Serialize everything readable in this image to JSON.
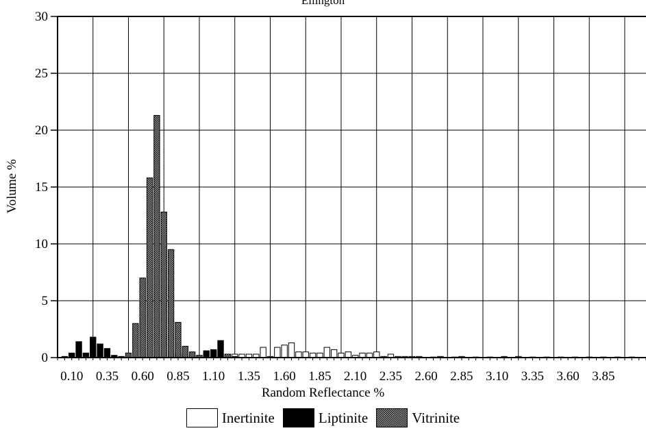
{
  "chart_data": {
    "type": "bar",
    "title": "Ellington",
    "xlabel": "Random Reflectance %",
    "ylabel": "Volume %",
    "ylim": [
      0,
      30
    ],
    "yticks": [
      0,
      5,
      10,
      15,
      20,
      25,
      30
    ],
    "xlim": [
      0.0,
      4.15
    ],
    "xticks": [
      "0.10",
      "0.35",
      "0.60",
      "0.85",
      "1.10",
      "1.35",
      "1.60",
      "1.85",
      "2.10",
      "2.35",
      "2.60",
      "2.85",
      "3.10",
      "3.35",
      "3.60",
      "3.85"
    ],
    "grid": true,
    "legend_position": "bottom",
    "bin_width": 0.05,
    "series": [
      {
        "name": "Inertinite",
        "color": "#ffffff",
        "points": [
          [
            0.85,
            0.4
          ],
          [
            0.9,
            0.3
          ],
          [
            0.95,
            0.2
          ],
          [
            1.05,
            0.4
          ],
          [
            1.1,
            0.5
          ],
          [
            1.2,
            0.3
          ],
          [
            1.25,
            0.3
          ],
          [
            1.3,
            0.3
          ],
          [
            1.35,
            0.3
          ],
          [
            1.4,
            0.3
          ],
          [
            1.45,
            0.9
          ],
          [
            1.5,
            0.1
          ],
          [
            1.55,
            0.9
          ],
          [
            1.6,
            1.1
          ],
          [
            1.65,
            1.3
          ],
          [
            1.7,
            0.5
          ],
          [
            1.75,
            0.5
          ],
          [
            1.8,
            0.4
          ],
          [
            1.85,
            0.4
          ],
          [
            1.9,
            0.9
          ],
          [
            1.95,
            0.7
          ],
          [
            2.0,
            0.4
          ],
          [
            2.05,
            0.5
          ],
          [
            2.1,
            0.2
          ],
          [
            2.15,
            0.4
          ],
          [
            2.2,
            0.4
          ],
          [
            2.25,
            0.5
          ],
          [
            2.3,
            0.1
          ],
          [
            2.35,
            0.3
          ],
          [
            2.4,
            0.1
          ],
          [
            2.45,
            0.1
          ],
          [
            2.5,
            0.1
          ],
          [
            2.55,
            0.1
          ],
          [
            2.65,
            0.05
          ],
          [
            2.7,
            0.1
          ],
          [
            2.8,
            0.05
          ],
          [
            2.85,
            0.1
          ],
          [
            2.95,
            0.05
          ],
          [
            3.05,
            0.05
          ],
          [
            3.15,
            0.1
          ],
          [
            3.25,
            0.1
          ],
          [
            3.35,
            0.05
          ],
          [
            3.45,
            0.05
          ],
          [
            3.55,
            0.05
          ],
          [
            3.65,
            0.05
          ],
          [
            3.75,
            0.05
          ],
          [
            3.85,
            0.05
          ],
          [
            3.95,
            0.05
          ],
          [
            4.05,
            0.05
          ]
        ]
      },
      {
        "name": "Liptinite",
        "color": "#000000",
        "points": [
          [
            0.05,
            0.1
          ],
          [
            0.1,
            0.4
          ],
          [
            0.15,
            1.4
          ],
          [
            0.2,
            0.4
          ],
          [
            0.25,
            1.8
          ],
          [
            0.3,
            1.2
          ],
          [
            0.35,
            0.8
          ],
          [
            0.4,
            0.2
          ],
          [
            0.45,
            0.1
          ],
          [
            0.6,
            0.1
          ],
          [
            0.75,
            0.1
          ],
          [
            0.95,
            0.1
          ],
          [
            1.05,
            0.6
          ],
          [
            1.1,
            0.7
          ],
          [
            1.15,
            1.5
          ]
        ]
      },
      {
        "name": "Vitrinite",
        "color": "#6e6e6e",
        "points": [
          [
            0.5,
            0.4
          ],
          [
            0.55,
            3.0
          ],
          [
            0.6,
            7.0
          ],
          [
            0.65,
            15.8
          ],
          [
            0.7,
            21.3
          ],
          [
            0.75,
            12.8
          ],
          [
            0.8,
            9.5
          ],
          [
            0.85,
            3.1
          ],
          [
            0.9,
            1.0
          ],
          [
            0.95,
            0.5
          ],
          [
            1.0,
            0.2
          ],
          [
            1.05,
            0.1
          ],
          [
            1.2,
            0.3
          ],
          [
            1.25,
            0.1
          ]
        ]
      }
    ]
  }
}
